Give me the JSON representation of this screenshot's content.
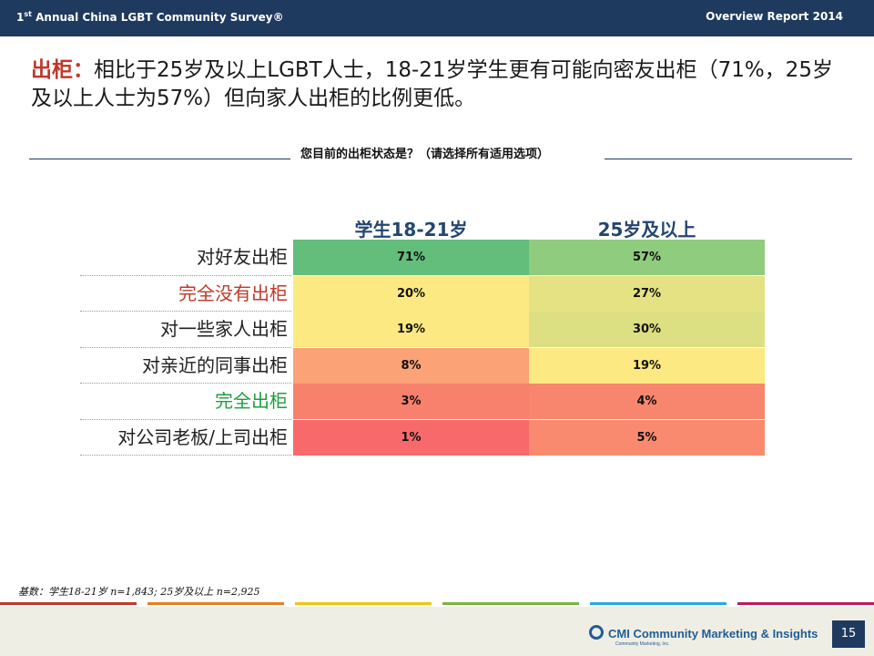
{
  "header": {
    "survey_ordinal": "1",
    "survey_ordinal_sup": "st",
    "survey_title": " Annual China LGBT Community Survey®",
    "report": "Overview Report 2014"
  },
  "headline": {
    "keyword": "出柜：",
    "text": "相比于25岁及以上LGBT人士，18-21岁学生更有可能向密友出柜（71%，25岁及以上人士为57%）但向家人出柜的比例更低。"
  },
  "question": "您目前的出柜状态是？（请选择所有适用选项）",
  "chart_data": {
    "type": "table",
    "columns": [
      "学生18-21岁",
      "25岁及以上"
    ],
    "rows": [
      {
        "label": "对好友出柜",
        "label_color": "#222222",
        "values": [
          "71%",
          "57%"
        ],
        "colors": [
          "#63be7b",
          "#8fcc7e"
        ]
      },
      {
        "label": "完全没有出柜",
        "label_color": "#c0392b",
        "values": [
          "20%",
          "27%"
        ],
        "colors": [
          "#fde982",
          "#e5e283"
        ]
      },
      {
        "label": "对一些家人出柜",
        "label_color": "#222222",
        "values": [
          "19%",
          "30%"
        ],
        "colors": [
          "#fde982",
          "#dde082"
        ]
      },
      {
        "label": "对亲近的同事出柜",
        "label_color": "#222222",
        "values": [
          "8%",
          "19%"
        ],
        "colors": [
          "#fba277",
          "#fde982"
        ]
      },
      {
        "label": "完全出柜",
        "label_color": "#1e9e3e",
        "values": [
          "3%",
          "4%"
        ],
        "colors": [
          "#f8816d",
          "#f8856e"
        ]
      },
      {
        "label": "对公司老板/上司出柜",
        "label_color": "#222222",
        "values": [
          "1%",
          "5%"
        ],
        "colors": [
          "#f8696b",
          "#f98a70"
        ]
      }
    ]
  },
  "base_note": "基数：学生18-21岁 n=1,843; 25岁及以上 n=2,925",
  "footer": {
    "logo_text": "CMI Community Marketing & Insights",
    "logo_sub": "Community Marketing, Inc.",
    "page": "15"
  },
  "stripe_colors": [
    "#c0392b",
    "#e67e22",
    "#f1c40f",
    "#7cb342",
    "#29a9e0",
    "#c2185b"
  ]
}
